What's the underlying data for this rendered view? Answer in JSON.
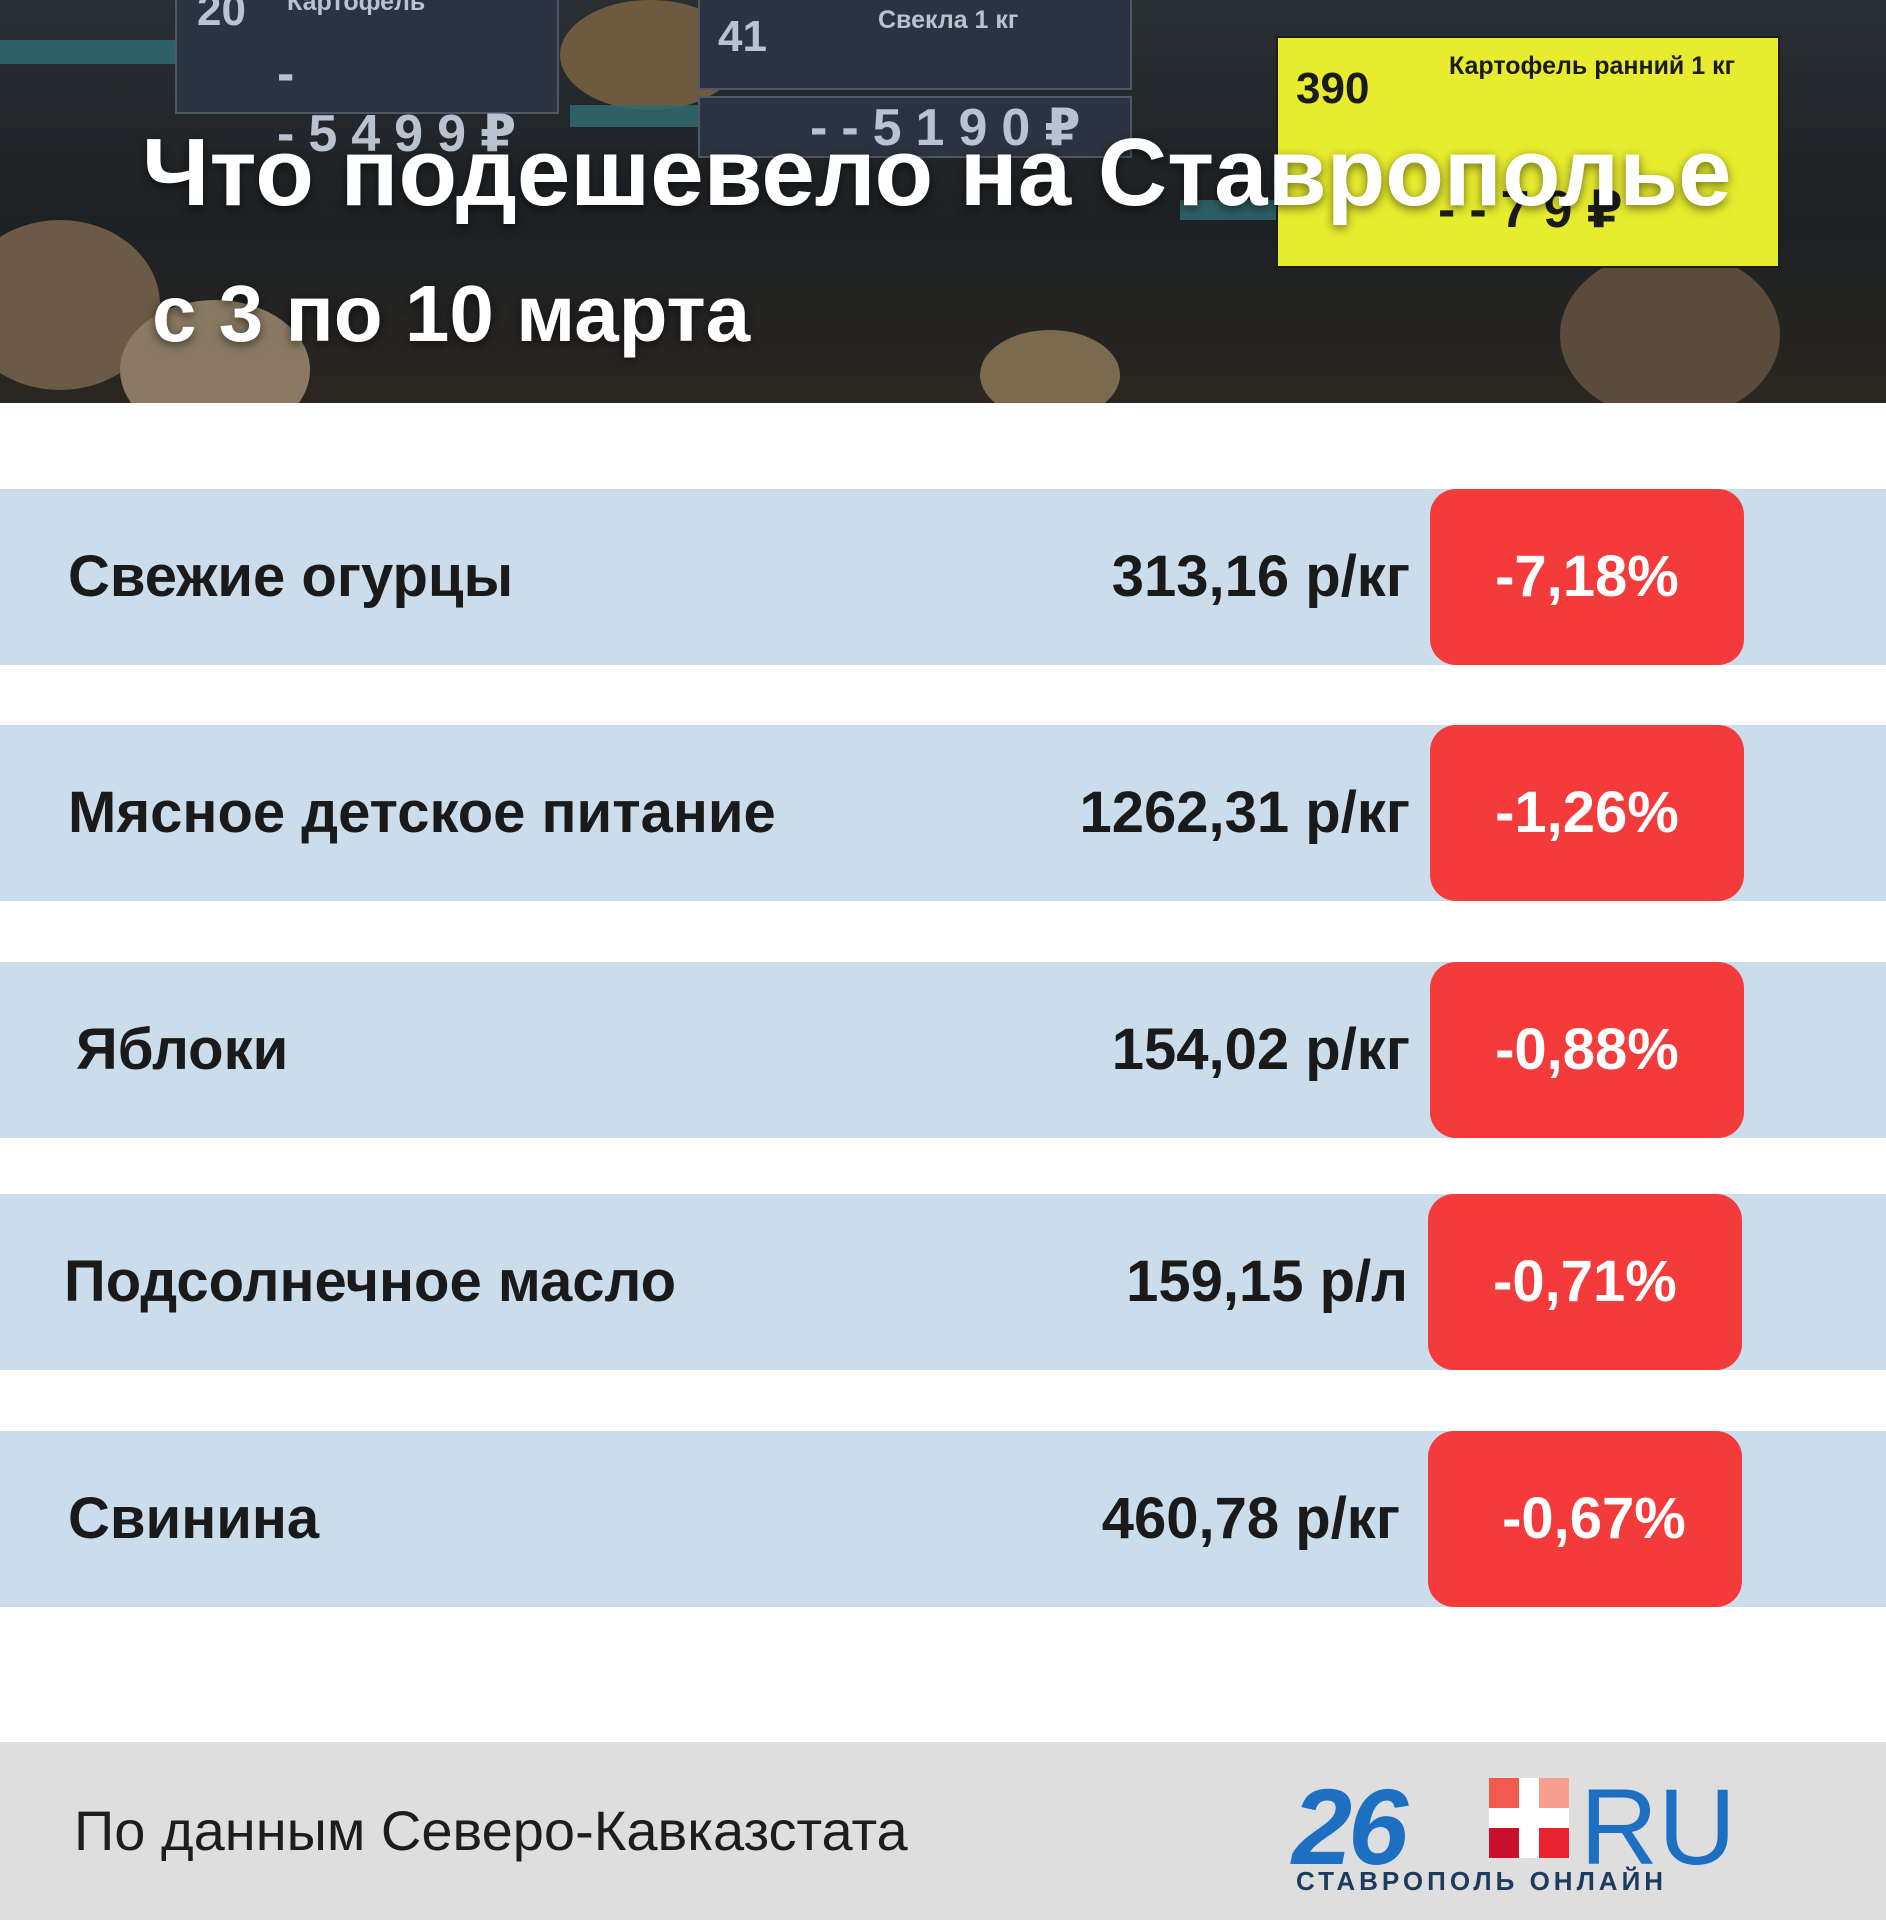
{
  "header": {
    "title_line1": "Что подешевело на Ставрополье",
    "title_line2": "с 3 по 10 марта",
    "photo_tags": [
      {
        "num": "20",
        "label": "Картофель",
        "price": "--5499₽"
      },
      {
        "num": "41",
        "label": "Свекла 1 кг",
        "price": "--5190₽"
      },
      {
        "num": "390",
        "label": "Картофель ранний 1 кг",
        "price": "--79₽"
      }
    ]
  },
  "items": [
    {
      "name": "Свежие огурцы",
      "price": "313,16 р/кг",
      "change": "-7,18%"
    },
    {
      "name": "Мясное детское питание",
      "price": "1262,31 р/кг",
      "change": "-1,26%"
    },
    {
      "name": "Яблоки",
      "price": "154,02 р/кг",
      "change": "-0,88%"
    },
    {
      "name": "Подсолнечное масло",
      "price": "159,15 р/л",
      "change": "-0,71%"
    },
    {
      "name": "Свинина",
      "price": "460,78 р/кг",
      "change": "-0,67%"
    }
  ],
  "footer": {
    "source": "По данным Северо-Кавказстата",
    "logo_number": "26",
    "logo_domain": "RU",
    "logo_subtitle": "СТАВРОПОЛЬ ОНЛАЙН"
  },
  "colors": {
    "row_background": "#cbdcea",
    "badge_red": "#f43b3b",
    "logo_blue": "#1d6fc2",
    "footer_gray": "#dedede"
  }
}
